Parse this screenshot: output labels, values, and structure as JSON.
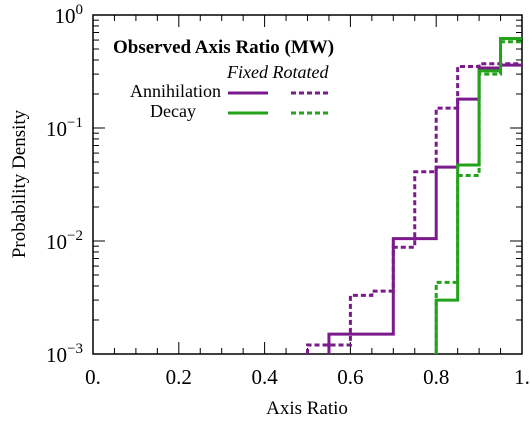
{
  "chart_data": {
    "type": "line",
    "step": true,
    "title": "",
    "xlabel": "Axis Ratio",
    "ylabel": "Probability Density",
    "xlim": [
      0,
      1
    ],
    "ylim": [
      0.001,
      1
    ],
    "yscale": "log",
    "x_ticks": [
      {
        "value": 0,
        "label": "0."
      },
      {
        "value": 0.2,
        "label": "0.2"
      },
      {
        "value": 0.4,
        "label": "0.4"
      },
      {
        "value": 0.6,
        "label": "0.6"
      },
      {
        "value": 0.8,
        "label": "0.8"
      },
      {
        "value": 1,
        "label": "1."
      }
    ],
    "y_ticks": [
      {
        "value": 0.001,
        "base": "10",
        "exp": "−3"
      },
      {
        "value": 0.01,
        "base": "10",
        "exp": "−2"
      },
      {
        "value": 0.1,
        "base": "10",
        "exp": "−1"
      },
      {
        "value": 1,
        "base": "10",
        "exp": "0"
      }
    ],
    "bin_edges": [
      0.5,
      0.55,
      0.6,
      0.65,
      0.7,
      0.75,
      0.8,
      0.85,
      0.9,
      0.95,
      1.0
    ],
    "legend": {
      "title": "Observed Axis Ratio (MW)",
      "column_headers": "Fixed Rotated",
      "position": "top-left"
    },
    "series": [
      {
        "name": "Annihilation",
        "variant": "Fixed",
        "color": "#7b1a8a",
        "dash": "solid",
        "values": [
          null,
          0.0015,
          0.0015,
          0.0015,
          0.0105,
          0.0105,
          0.045,
          0.18,
          0.34,
          0.36
        ]
      },
      {
        "name": "Annihilation",
        "variant": "Rotated",
        "color": "#7b1a8a",
        "dash": "dashed",
        "values": [
          0.0012,
          0.0012,
          0.0033,
          0.0036,
          0.0088,
          0.041,
          0.15,
          0.35,
          0.37,
          0.37
        ]
      },
      {
        "name": "Decay",
        "variant": "Fixed",
        "color": "#22a31a",
        "dash": "solid",
        "values": [
          null,
          null,
          null,
          null,
          null,
          null,
          0.003,
          0.047,
          0.32,
          0.62
        ]
      },
      {
        "name": "Decay",
        "variant": "Rotated",
        "color": "#22a31a",
        "dash": "dashed",
        "values": [
          null,
          null,
          null,
          null,
          null,
          null,
          0.0043,
          0.038,
          0.3,
          0.58
        ]
      }
    ]
  }
}
